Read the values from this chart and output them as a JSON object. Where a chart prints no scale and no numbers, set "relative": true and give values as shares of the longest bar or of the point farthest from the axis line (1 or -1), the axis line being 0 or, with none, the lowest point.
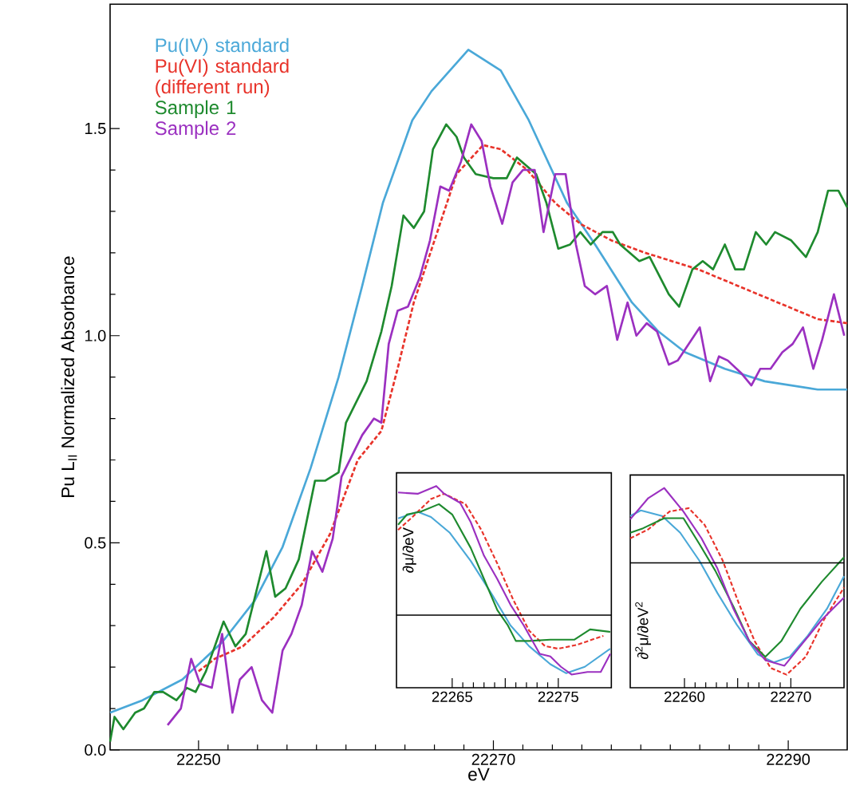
{
  "chart_data": [
    {
      "type": "line",
      "xlabel": "eV",
      "ylabel": "Pu L$_{II}$ Normalized Absorbance",
      "xlim": [
        22244,
        22294
      ],
      "ylim": [
        0,
        1.8
      ],
      "xticks": [
        22250,
        22270,
        22290
      ],
      "yticks": [
        {
          "value": 0,
          "label": "0.0"
        },
        {
          "value": 0.5,
          "label": "0.5"
        },
        {
          "value": 1,
          "label": "1.0"
        },
        {
          "value": 1.5,
          "label": "1.5"
        }
      ],
      "legend": "top left",
      "grid": false,
      "marker": "none",
      "series": [
        {
          "name": "Pu(IV) standard",
          "color": "#4aa8d8",
          "x": [
            22244,
            22246.2,
            22248.9,
            22251.6,
            22253.8,
            22255.7,
            22257.6,
            22259.5,
            22261.1,
            22262.5,
            22264.5,
            22265.8,
            22268.3,
            22270.5,
            22272.4,
            22275.0,
            22276.9,
            22279.4,
            22281.2,
            22283.0,
            22285.7,
            22288.4,
            22292.0,
            22294
          ],
          "values": [
            0.09,
            0.12,
            0.17,
            0.26,
            0.36,
            0.49,
            0.68,
            0.9,
            1.12,
            1.32,
            1.52,
            1.59,
            1.69,
            1.64,
            1.52,
            1.32,
            1.22,
            1.08,
            1.01,
            0.96,
            0.92,
            0.89,
            0.87,
            0.87
          ]
        },
        {
          "name": "Pu(VI) standard (different run)",
          "color": "#e8332a",
          "line_style": "dashed",
          "x": [
            22250.0,
            22251.1,
            22253.0,
            22255.1,
            22257.0,
            22258.9,
            22260.8,
            22262.4,
            22263.5,
            22264.6,
            22266.1,
            22267.5,
            22269.3,
            22270.5,
            22272.3,
            22274.2,
            22275.9,
            22278.0,
            22280.3,
            22283.9,
            22286.6,
            22289.3,
            22292.0,
            22294
          ],
          "values": [
            0.19,
            0.22,
            0.25,
            0.32,
            0.4,
            0.52,
            0.7,
            0.77,
            0.92,
            1.08,
            1.24,
            1.39,
            1.46,
            1.45,
            1.4,
            1.32,
            1.27,
            1.23,
            1.2,
            1.16,
            1.12,
            1.08,
            1.04,
            1.03
          ]
        },
        {
          "name": "Sample 1",
          "color": "#1e8a2e",
          "x": [
            22244.0,
            22244.3,
            22244.9,
            22245.7,
            22246.3,
            22247.0,
            22247.6,
            22248.5,
            22249.2,
            22249.8,
            22250.5,
            22251.7,
            22252.5,
            22253.2,
            22254.6,
            22255.2,
            22255.9,
            22256.8,
            22257.9,
            22258.6,
            22259.5,
            22260.0,
            22261.4,
            22262.4,
            22263.1,
            22263.9,
            22264.6,
            22265.3,
            22265.9,
            22266.8,
            22267.5,
            22268.0,
            22268.8,
            22270.0,
            22270.9,
            22271.6,
            22272.9,
            22273.6,
            22274.4,
            22275.2,
            22275.9,
            22276.6,
            22277.4,
            22278.1,
            22278.6,
            22279.9,
            22280.6,
            22281.9,
            22282.6,
            22283.5,
            22284.2,
            22284.9,
            22285.7,
            22286.4,
            22287.0,
            22287.8,
            22288.5,
            22289.1,
            22290.2,
            22291.2,
            22292.0,
            22292.7,
            22293.4,
            22294
          ],
          "values": [
            0.02,
            0.08,
            0.05,
            0.09,
            0.1,
            0.14,
            0.14,
            0.12,
            0.15,
            0.14,
            0.19,
            0.31,
            0.25,
            0.28,
            0.48,
            0.37,
            0.39,
            0.46,
            0.65,
            0.65,
            0.67,
            0.79,
            0.89,
            1.01,
            1.12,
            1.29,
            1.26,
            1.3,
            1.45,
            1.51,
            1.48,
            1.43,
            1.39,
            1.38,
            1.38,
            1.43,
            1.39,
            1.32,
            1.21,
            1.22,
            1.25,
            1.22,
            1.25,
            1.25,
            1.22,
            1.18,
            1.19,
            1.1,
            1.07,
            1.16,
            1.18,
            1.16,
            1.22,
            1.16,
            1.16,
            1.25,
            1.22,
            1.25,
            1.23,
            1.19,
            1.25,
            1.35,
            1.35,
            1.31
          ]
        },
        {
          "name": "Sample 2",
          "color": "#9b30c0",
          "x": [
            22247.9,
            22248.8,
            22249.5,
            22250.1,
            22250.9,
            22251.6,
            22252.3,
            22252.8,
            22253.6,
            22254.3,
            22255.0,
            22255.7,
            22256.3,
            22257.0,
            22257.7,
            22258.4,
            22259.1,
            22259.7,
            22261.1,
            22261.9,
            22262.4,
            22262.9,
            22263.5,
            22264.2,
            22265.0,
            22265.7,
            22266.4,
            22267.0,
            22267.8,
            22268.5,
            22269.2,
            22269.8,
            22270.6,
            22271.3,
            22272.0,
            22272.8,
            22273.4,
            22274.2,
            22274.9,
            22275.6,
            22276.2,
            22276.9,
            22277.7,
            22278.4,
            22279.1,
            22279.7,
            22280.4,
            22281.1,
            22281.9,
            22282.5,
            22284.0,
            22284.7,
            22285.3,
            22285.9,
            22286.8,
            22287.5,
            22288.1,
            22288.8,
            22289.6,
            22290.3,
            22291.0,
            22291.7,
            22292.3,
            22293.1,
            22293.8
          ],
          "values": [
            0.06,
            0.1,
            0.22,
            0.16,
            0.15,
            0.28,
            0.09,
            0.17,
            0.2,
            0.12,
            0.09,
            0.24,
            0.28,
            0.35,
            0.48,
            0.43,
            0.51,
            0.66,
            0.76,
            0.8,
            0.79,
            0.98,
            1.06,
            1.07,
            1.14,
            1.23,
            1.36,
            1.35,
            1.42,
            1.51,
            1.47,
            1.36,
            1.27,
            1.37,
            1.4,
            1.4,
            1.25,
            1.39,
            1.39,
            1.22,
            1.12,
            1.1,
            1.12,
            0.99,
            1.08,
            1.0,
            1.03,
            1.01,
            0.93,
            0.94,
            1.02,
            0.89,
            0.95,
            0.94,
            0.91,
            0.88,
            0.92,
            0.92,
            0.96,
            0.98,
            1.02,
            0.92,
            0.99,
            1.1,
            1.0
          ]
        }
      ]
    },
    {
      "type": "line",
      "ylabel": "∂μ/∂eV",
      "relative": true,
      "xlim": [
        22259.75,
        22280
      ],
      "xticks": [
        22265,
        {
          "value": 22270,
          "label": null
        },
        22275
      ],
      "marker": "none",
      "series": [
        {
          "color": "#4aa8d8",
          "x": [
            22259.9,
            22261.75,
            22263,
            22264.75,
            22266.75,
            22268.75,
            22270.5,
            22272.25,
            22274.25,
            22275.75,
            22277.5,
            22279.9
          ],
          "values": [
            0.75,
            0.8,
            0.76,
            0.64,
            0.42,
            0.16,
            -0.08,
            -0.24,
            -0.38,
            -0.45,
            -0.4,
            -0.26
          ]
        },
        {
          "color": "#e8332a",
          "line_style": "dashed",
          "x": [
            22259.9,
            22261.25,
            22263,
            22264.25,
            22266.25,
            22267.75,
            22269.25,
            22270.75,
            22272.25,
            22273.75,
            22275,
            22276.75,
            22279.25
          ],
          "values": [
            0.66,
            0.76,
            0.9,
            0.94,
            0.86,
            0.66,
            0.4,
            0.12,
            -0.12,
            -0.24,
            -0.26,
            -0.23,
            -0.16
          ]
        },
        {
          "color": "#1e8a2e",
          "x": [
            22259.9,
            22260.75,
            22262,
            22263.75,
            22265,
            22266.75,
            22268,
            22269.25,
            22270.25,
            22271,
            22272.25,
            22274.25,
            22276.5,
            22278,
            22279.9
          ],
          "values": [
            0.7,
            0.78,
            0.8,
            0.86,
            0.78,
            0.52,
            0.28,
            0.04,
            -0.08,
            -0.2,
            -0.2,
            -0.19,
            -0.19,
            -0.11,
            -0.13
          ]
        },
        {
          "color": "#9b30c0",
          "x": [
            22259.9,
            22261.75,
            22263.5,
            22264.25,
            22265.75,
            22266.75,
            22268,
            22269.25,
            22270.5,
            22271.75,
            22273.25,
            22274.25,
            22275.25,
            22276.25,
            22277.75,
            22279,
            22279.9
          ],
          "values": [
            0.95,
            0.94,
            1,
            0.94,
            0.87,
            0.72,
            0.46,
            0.28,
            0.08,
            -0.08,
            -0.3,
            -0.32,
            -0.4,
            -0.46,
            -0.44,
            -0.44,
            -0.3
          ]
        }
      ]
    },
    {
      "type": "line",
      "ylabel": "∂$^{2}$μ/∂eV$^{2}$",
      "relative": true,
      "xlim": [
        22254.9,
        22275
      ],
      "xticks": [
        22260,
        {
          "value": 22265,
          "label": null
        },
        22270
      ],
      "marker": "none",
      "series": [
        {
          "color": "#4aa8d8",
          "x": [
            22254.9,
            22255.9,
            22257.9,
            22259.6,
            22261.4,
            22263.1,
            22264.9,
            22266.9,
            22268.4,
            22269.9,
            22271.6,
            22273.4,
            22275
          ],
          "values": [
            0.42,
            0.47,
            0.42,
            0.27,
            0.02,
            -0.27,
            -0.55,
            -0.82,
            -0.89,
            -0.84,
            -0.65,
            -0.41,
            -0.12
          ]
        },
        {
          "color": "#e8332a",
          "line_style": "dashed",
          "x": [
            22254.9,
            22256.6,
            22258.6,
            22260.4,
            22261.9,
            22263.6,
            22265.1,
            22266.6,
            22268.1,
            22269.6,
            22271.4,
            22273.1,
            22275
          ],
          "values": [
            0.22,
            0.3,
            0.46,
            0.49,
            0.34,
            0.02,
            -0.36,
            -0.7,
            -0.94,
            -1,
            -0.84,
            -0.51,
            -0.22
          ]
        },
        {
          "color": "#1e8a2e",
          "x": [
            22254.9,
            22256.1,
            22258.1,
            22259.9,
            22261.4,
            22262.9,
            22264.6,
            22266.1,
            22267.6,
            22269.1,
            22270.9,
            22272.9,
            22275
          ],
          "values": [
            0.27,
            0.31,
            0.4,
            0.4,
            0.17,
            -0.07,
            -0.39,
            -0.7,
            -0.84,
            -0.7,
            -0.41,
            -0.17,
            0.05
          ]
        },
        {
          "color": "#9b30c0",
          "x": [
            22254.9,
            22256.6,
            22258.1,
            22259.9,
            22261.6,
            22263.1,
            22264.6,
            22266.1,
            22267.6,
            22269.4,
            22271.1,
            22272.9,
            22275
          ],
          "values": [
            0.39,
            0.58,
            0.67,
            0.46,
            0.22,
            -0.05,
            -0.41,
            -0.7,
            -0.87,
            -0.92,
            -0.72,
            -0.51,
            -0.31
          ]
        }
      ]
    }
  ]
}
